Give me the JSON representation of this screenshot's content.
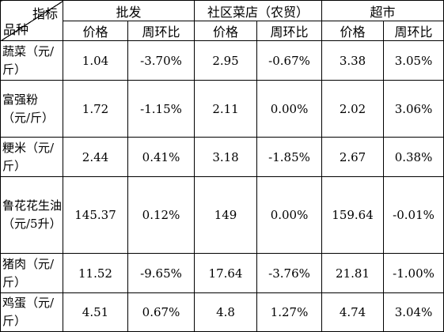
{
  "corner": {
    "top": "指标",
    "bottom": "品种"
  },
  "groups": [
    "批发",
    "社区菜店（农贸）",
    "超市"
  ],
  "subheaders": [
    "价格",
    "周环比",
    "价格",
    "周环比",
    "价格",
    "周环比"
  ],
  "rows": [
    {
      "name": "蔬菜（元/斤）",
      "values": [
        "1.04",
        "-3.70%",
        "2.95",
        "-0.67%",
        "3.38",
        "3.05%"
      ]
    },
    {
      "name": "富强粉（元/斤）",
      "values": [
        "1.72",
        "-1.15%",
        "2.11",
        "0.00%",
        "2.02",
        "3.06%"
      ]
    },
    {
      "name": "粳米（元/斤）",
      "values": [
        "2.44",
        "0.41%",
        "3.18",
        "-1.85%",
        "2.67",
        "0.38%"
      ]
    },
    {
      "name": "鲁花花生油（元/5升）",
      "values": [
        "145.37",
        "0.12%",
        "149",
        "0.00%",
        "159.64",
        "-0.01%"
      ]
    },
    {
      "name": "猪肉（元/斤）",
      "values": [
        "11.52",
        "-9.65%",
        "17.64",
        "-3.76%",
        "21.81",
        "-1.00%"
      ]
    },
    {
      "name": "鸡蛋（元/斤）",
      "values": [
        "4.51",
        "0.67%",
        "4.8",
        "1.27%",
        "4.74",
        "3.04%"
      ]
    }
  ]
}
